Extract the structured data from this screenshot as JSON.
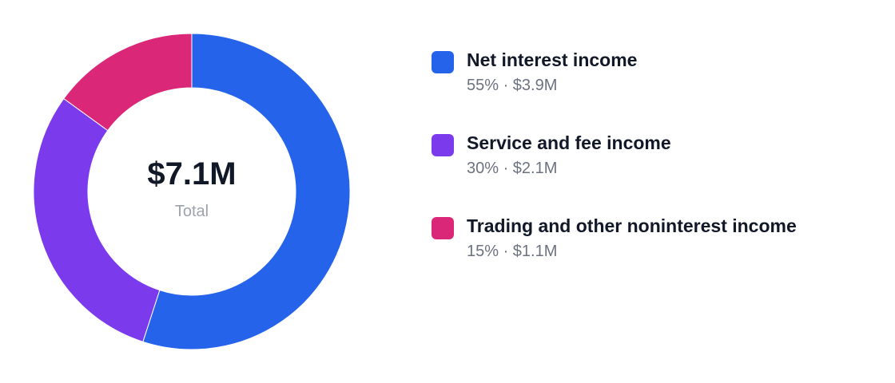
{
  "chart_data": {
    "type": "pie",
    "donut": true,
    "center": {
      "value": "$7.1M",
      "label": "Total"
    },
    "slices": [
      {
        "label": "Net interest income",
        "percent": 55,
        "percent_label": "55%",
        "amount_label": "$3.9M",
        "color": "#2563eb"
      },
      {
        "label": "Service and fee income",
        "percent": 30,
        "percent_label": "30%",
        "amount_label": "$2.1M",
        "color": "#7c3aed"
      },
      {
        "label": "Trading and other noninterest income",
        "percent": 15,
        "percent_label": "15%",
        "amount_label": "$1.1M",
        "color": "#db2777"
      }
    ],
    "legend": {
      "position": "right",
      "separator": " · "
    }
  }
}
